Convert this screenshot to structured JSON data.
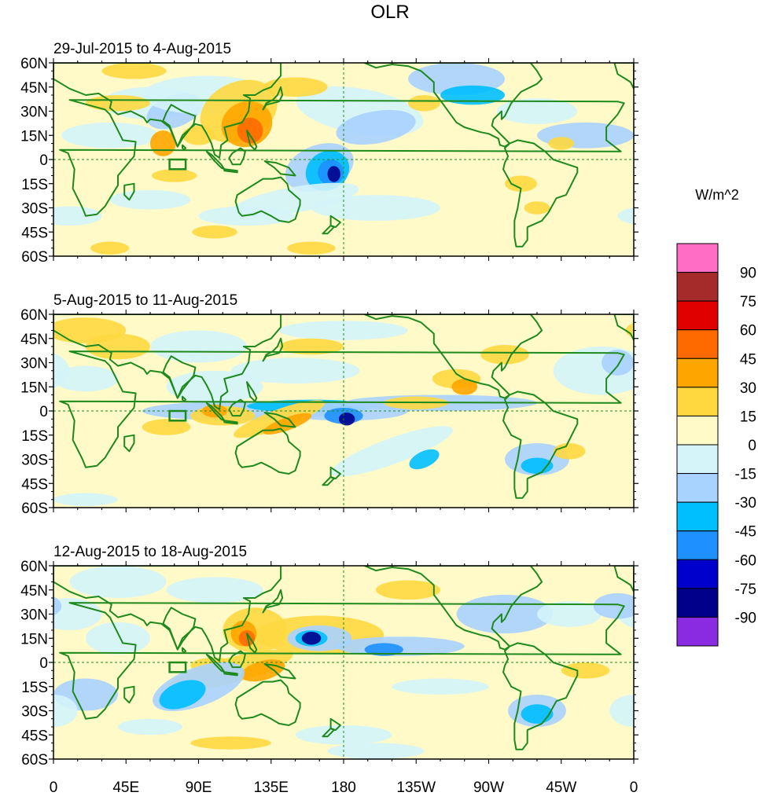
{
  "figure": {
    "title": "OLR",
    "units_label": "W/m^2"
  },
  "panels": [
    {
      "period": "29-Jul-2015 to 4-Aug-2015"
    },
    {
      "period": "5-Aug-2015 to 11-Aug-2015"
    },
    {
      "period": "12-Aug-2015 to 18-Aug-2015"
    }
  ],
  "latitude_ticks": [
    "60N",
    "45N",
    "30N",
    "15N",
    "0",
    "15S",
    "30S",
    "45S",
    "60S"
  ],
  "longitude_ticks": [
    "0",
    "45E",
    "90E",
    "135E",
    "180",
    "135W",
    "90W",
    "45W",
    "0"
  ],
  "colorbar": {
    "labels": [
      "90",
      "75",
      "60",
      "45",
      "30",
      "15",
      "0",
      "-15",
      "-30",
      "-45",
      "-60",
      "-75",
      "-90"
    ],
    "colors": [
      "#ff6ec4",
      "#a52a2a",
      "#e00000",
      "#ff6a00",
      "#ffa500",
      "#ffd840",
      "#fffac8",
      "#d4f4fa",
      "#a8d2ff",
      "#00bfff",
      "#1e90ff",
      "#0000cd",
      "#00008b",
      "#8a2be2"
    ]
  },
  "map_style": {
    "coastline_color": "#1e8a1e",
    "background_color": "#fffac8",
    "region_box_label": "box-region"
  }
}
